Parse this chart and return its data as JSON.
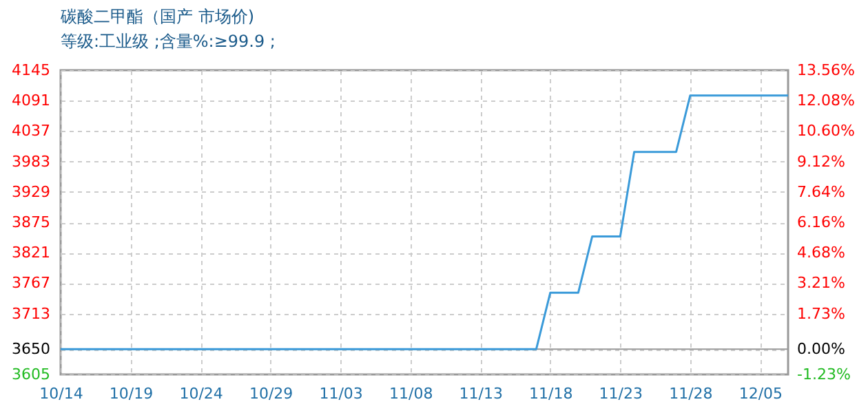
{
  "chart_data": {
    "type": "line",
    "title": "碳酸二甲酯（国产 市场价)",
    "subtitle": "等级:工业级 ;含量%:≥99.9 ;",
    "categories": [
      "10/14",
      null,
      null,
      null,
      null,
      "10/19",
      null,
      null,
      null,
      null,
      "10/24",
      null,
      null,
      null,
      null,
      "10/29",
      null,
      null,
      null,
      null,
      "11/03",
      null,
      null,
      null,
      null,
      "11/08",
      null,
      null,
      null,
      null,
      "11/13",
      null,
      null,
      null,
      null,
      "11/18",
      null,
      null,
      null,
      null,
      "11/23",
      null,
      null,
      null,
      null,
      "11/28",
      null,
      null,
      null,
      null,
      "12/05",
      null,
      null
    ],
    "series": [
      {
        "color": "#3a9ad9",
        "values": [
          3650,
          3650,
          3650,
          3650,
          3650,
          3650,
          3650,
          3650,
          3650,
          3650,
          3650,
          3650,
          3650,
          3650,
          3650,
          3650,
          3650,
          3650,
          3650,
          3650,
          3650,
          3650,
          3650,
          3650,
          3650,
          3650,
          3650,
          3650,
          3650,
          3650,
          3650,
          3650,
          3650,
          3650,
          3650,
          3750,
          3750,
          3750,
          3850,
          3850,
          3850,
          4000,
          4000,
          4000,
          4000,
          4100,
          4100,
          4100,
          4100,
          4100,
          4100,
          4100,
          4100
        ]
      }
    ],
    "ylim": [
      3605,
      4145
    ],
    "yticks": [
      3605,
      3650,
      3713,
      3767,
      3821,
      3875,
      3929,
      3983,
      4037,
      4091,
      4145
    ],
    "y2lim": [
      -1.23,
      13.56
    ],
    "y2ticks": [
      {
        "value": -1.23,
        "label": "-1.23%"
      },
      {
        "value": 0,
        "label": "0.00%"
      },
      {
        "value": 1.73,
        "label": "1.73%"
      },
      {
        "value": 3.21,
        "label": "3.21%"
      },
      {
        "value": 4.68,
        "label": "4.68%"
      },
      {
        "value": 6.16,
        "label": "6.16%"
      },
      {
        "value": 7.64,
        "label": "7.64%"
      },
      {
        "value": 9.12,
        "label": "9.12%"
      },
      {
        "value": 10.6,
        "label": "10.60%"
      },
      {
        "value": 12.08,
        "label": "12.08%"
      },
      {
        "value": 13.56,
        "label": "13.56%"
      }
    ],
    "ref_lines": [
      {
        "axis": "y2",
        "value": 0,
        "color": "#999999"
      }
    ],
    "grid": true,
    "marker": "none",
    "line_style": "solid"
  }
}
